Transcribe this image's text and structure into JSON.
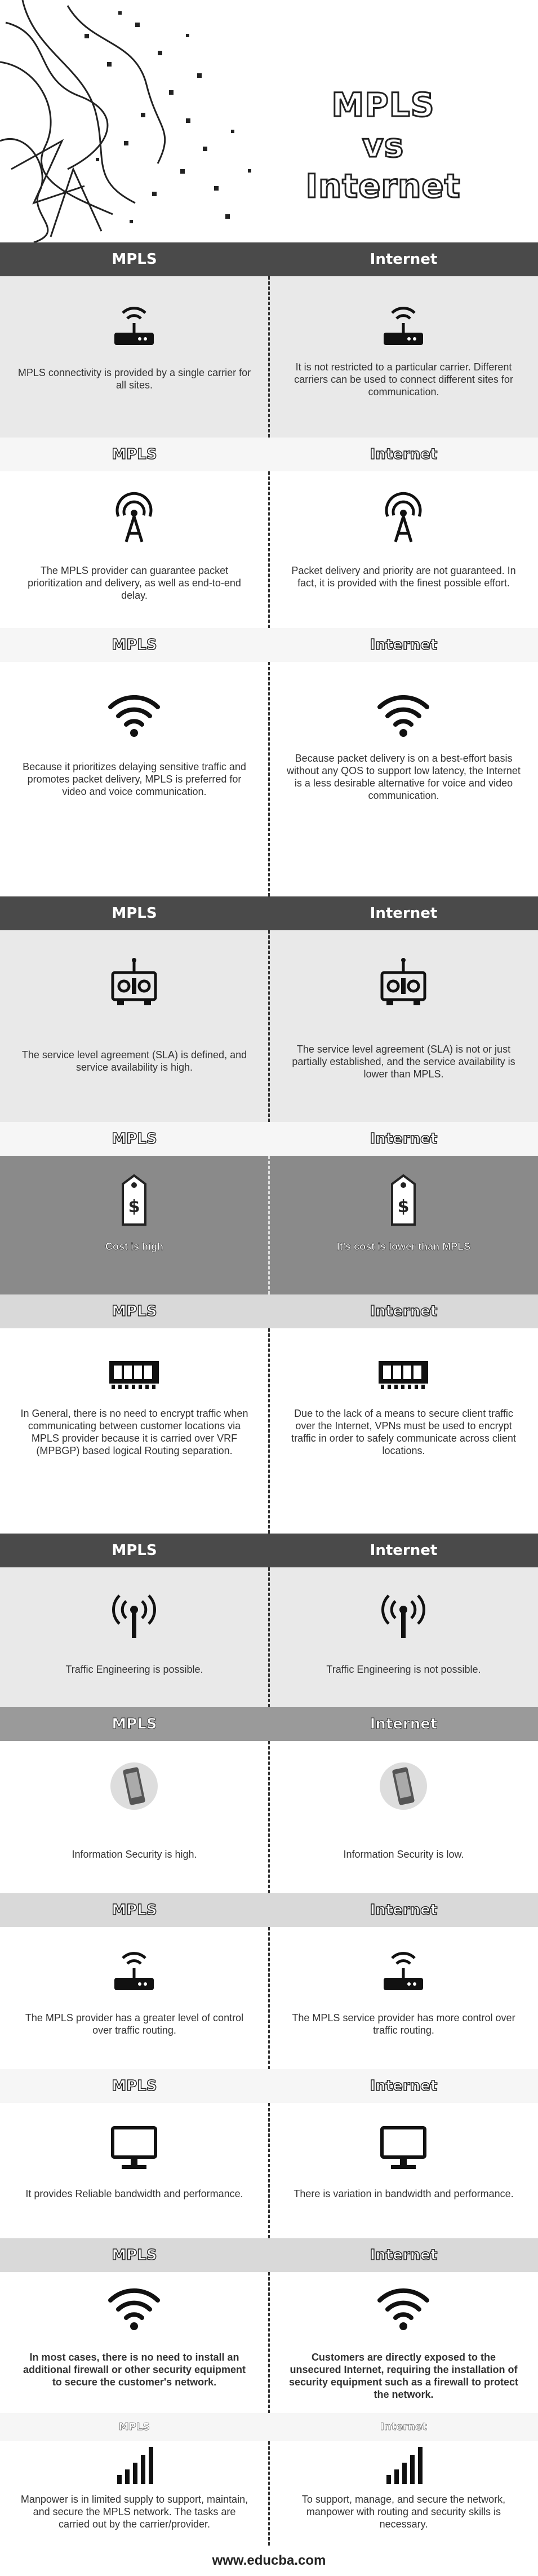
{
  "hero": {
    "title_line1": "MPLS",
    "title_line2": "vs",
    "title_line3": "Internet"
  },
  "col_left": "MPLS",
  "col_right": "Internet",
  "rows": [
    {
      "icon": "router-icon",
      "left": "MPLS connectivity is provided by a single carrier for all sites.",
      "right": "It is not restricted to a particular carrier. Different carriers can be used to connect different sites for communication."
    },
    {
      "icon": "broadcast-tower-icon",
      "left": "The MPLS provider can guarantee packet prioritization and delivery, as well as end-to-end delay.",
      "right": "Packet delivery and priority are not guaranteed. In fact, it is provided with the finest possible effort."
    },
    {
      "icon": "wifi-icon",
      "left": "Because it prioritizes delaying sensitive traffic and promotes packet delivery, MPLS is preferred for video and voice communication.",
      "right": "Because packet delivery is on a best-effort basis without any QOS to support low latency, the Internet is a less desirable alternative for voice and video communication."
    },
    {
      "icon": "remote-control-icon",
      "left": "The service level agreement (SLA) is defined, and service availability is high.",
      "right": "The service level agreement (SLA) is not or just partially established, and the service availability is lower than MPLS."
    },
    {
      "icon": "price-tag-icon",
      "left": "Cost is high",
      "right": "It's cost is lower than MPLS"
    },
    {
      "icon": "memory-module-icon",
      "left": "In General, there is no need to encrypt traffic when communicating between customer locations via MPLS provider because it is carried over VRF (MPBGP) based logical Routing separation.",
      "right": "Due to the lack of a means to secure client traffic over the Internet, VPNs must be used to encrypt traffic in order to safely communicate across client locations."
    },
    {
      "icon": "antenna-icon",
      "left": "Traffic Engineering is possible.",
      "right": "Traffic Engineering is not possible."
    },
    {
      "icon": "phone-icon",
      "left": "Information Security is high.",
      "right": "Information Security is low."
    },
    {
      "icon": "router-icon",
      "left": "The MPLS provider has a greater level of control over traffic routing.",
      "right": "The MPLS service provider has more control over traffic routing."
    },
    {
      "icon": "monitor-icon",
      "left": "It provides Reliable bandwidth and performance.",
      "right": "There is variation in bandwidth and performance."
    },
    {
      "icon": "wifi-icon",
      "left": "In most cases, there is no need to install an additional firewall or other security equipment to secure the customer's network.",
      "right": "Customers are directly exposed to the unsecured Internet, requiring the installation of security equipment such as a firewall to protect the network."
    },
    {
      "icon": "signal-bars-icon",
      "left": "Manpower is in limited supply to support, maintain, and secure the MPLS network. The tasks are carried out by the carrier/provider.",
      "right": "To support, manage, and secure the network, manpower with routing and security skills is necessary."
    }
  ],
  "footer": "www.educba.com"
}
